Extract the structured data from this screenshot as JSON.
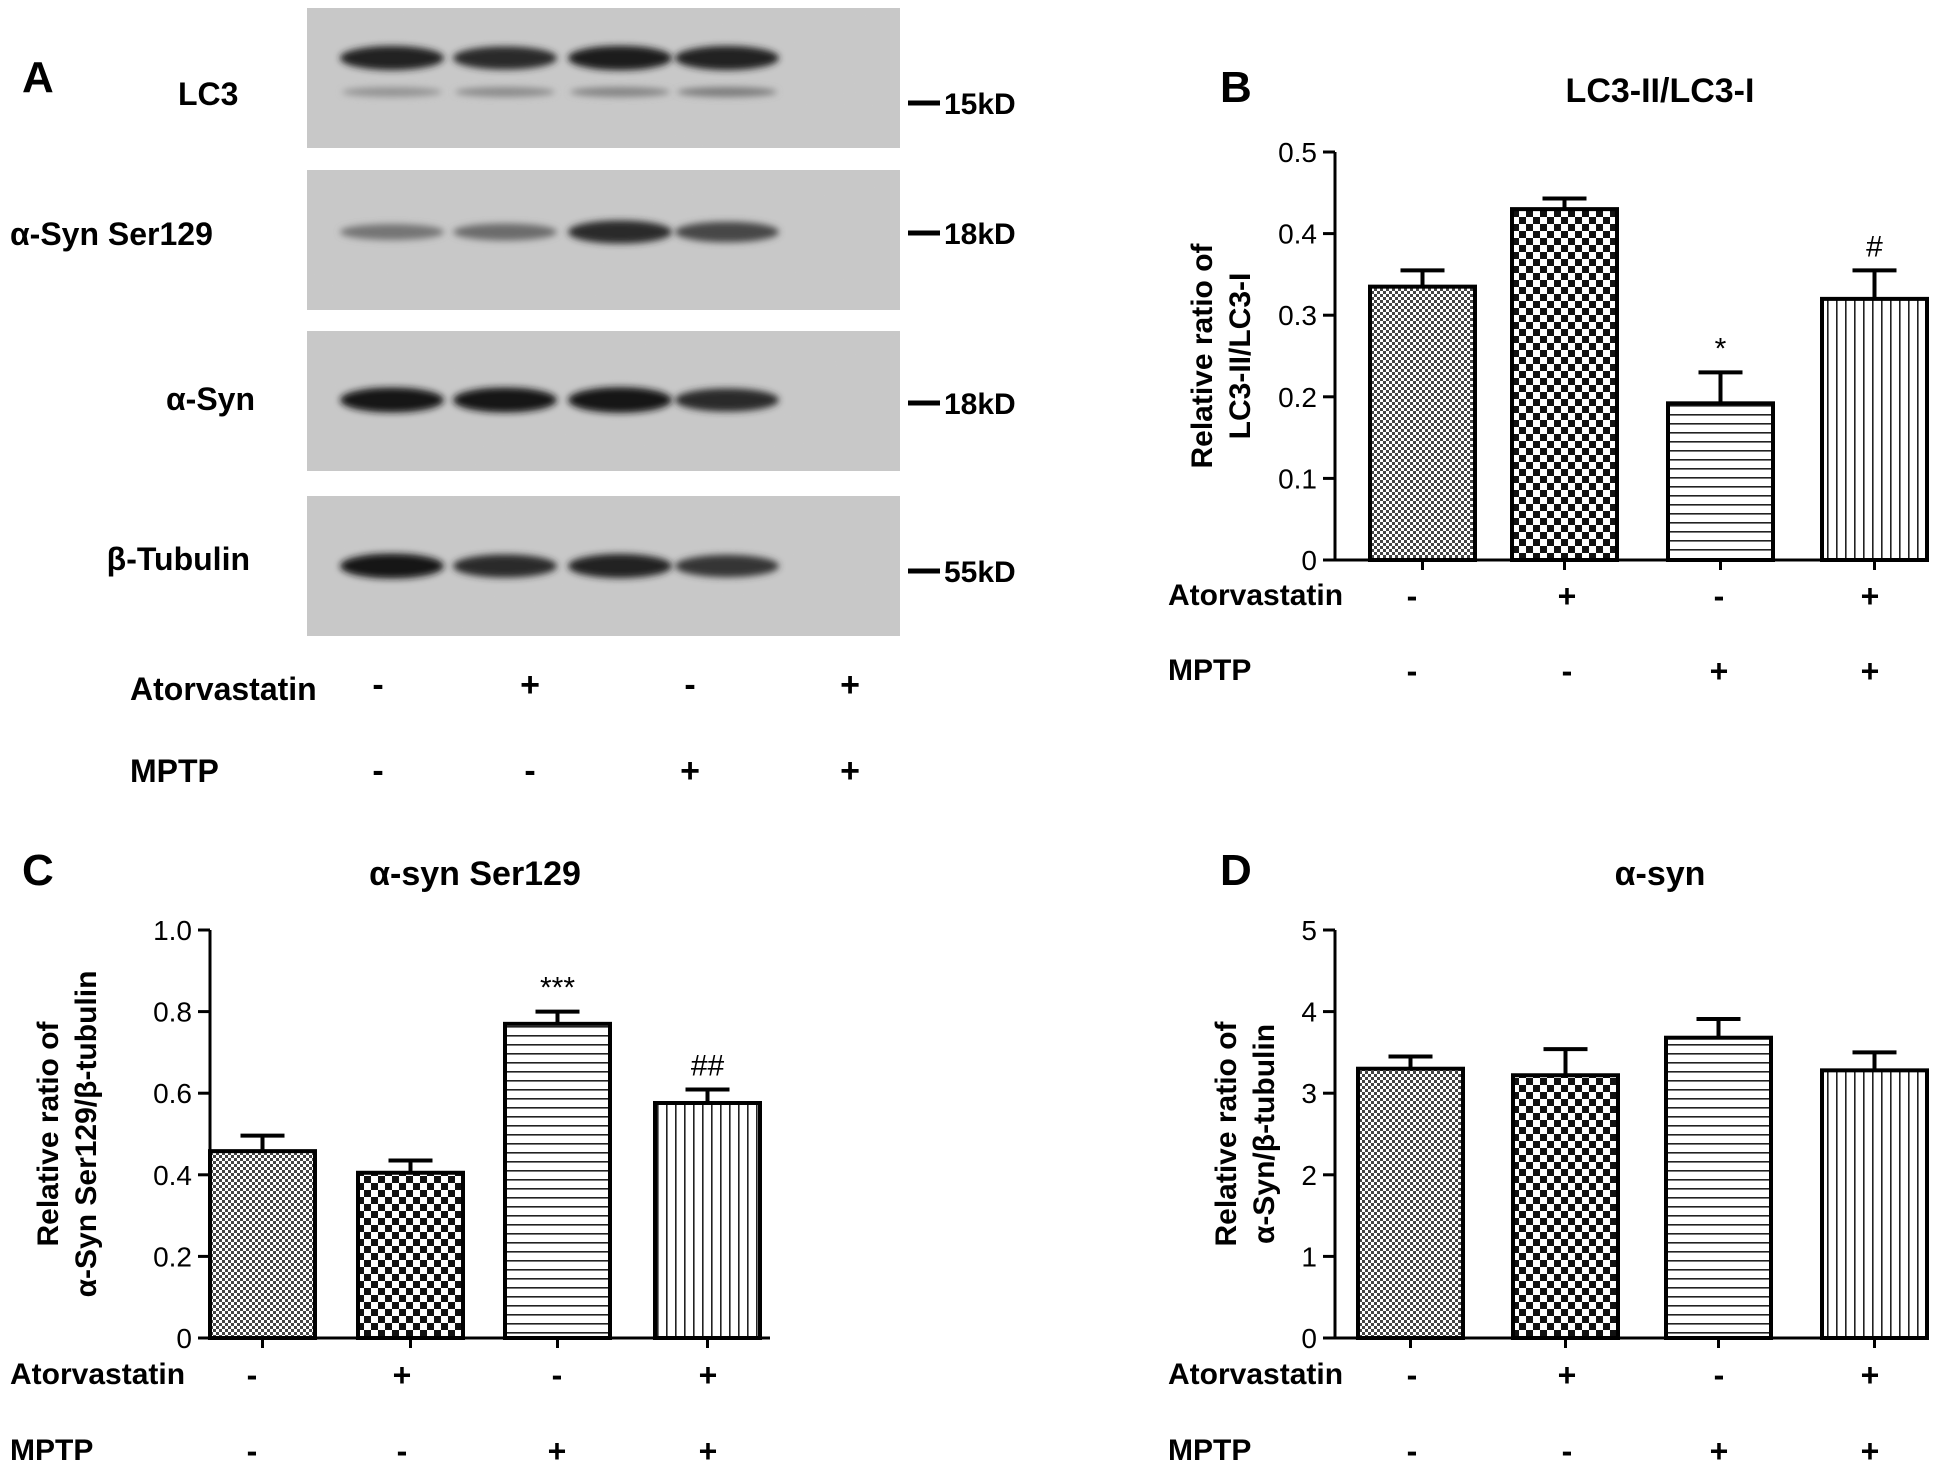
{
  "panel_a": {
    "letter": "A",
    "lanes": 4,
    "blots": [
      {
        "label": "LC3",
        "marker": "15kD",
        "bands": [
          0.9,
          0.85,
          0.92,
          0.9
        ],
        "lower_bands": [
          0.35,
          0.4,
          0.45,
          0.5
        ]
      },
      {
        "label": "α-Syn Ser129",
        "marker": "18kD",
        "bands": [
          0.45,
          0.5,
          0.85,
          0.7
        ],
        "lower_bands": null
      },
      {
        "label": "α-Syn",
        "marker": "18kD",
        "bands": [
          0.95,
          0.95,
          0.98,
          0.85
        ],
        "lower_bands": null
      },
      {
        "label": "β-Tubulin",
        "marker": "55kD",
        "bands": [
          0.95,
          0.85,
          0.9,
          0.8
        ],
        "lower_bands": null
      }
    ],
    "conditions": [
      {
        "name": "Atorvastatin",
        "values": [
          "-",
          "+",
          "-",
          "+"
        ]
      },
      {
        "name": "MPTP",
        "values": [
          "-",
          "-",
          "+",
          "+"
        ]
      }
    ]
  },
  "chart_data": [
    {
      "panel": "B",
      "type": "bar",
      "title": "LC3-II/LC3-I",
      "ylabel": [
        "Relative ratio of",
        "LC3-II/LC3-I"
      ],
      "ylim": [
        0,
        0.5
      ],
      "yticks": [
        "0",
        "0.1",
        "0.2",
        "0.3",
        "0.4",
        "0.5"
      ],
      "values": [
        0.335,
        0.43,
        0.192,
        0.32
      ],
      "errors": [
        0.02,
        0.013,
        0.038,
        0.035
      ],
      "annotations": [
        "",
        "",
        "*",
        "#"
      ],
      "patterns": [
        "dots",
        "checker",
        "hlines",
        "vlines"
      ],
      "conditions": [
        {
          "name": "Atorvastatin",
          "values": [
            "-",
            "+",
            "-",
            "+"
          ]
        },
        {
          "name": "MPTP",
          "values": [
            "-",
            "-",
            "+",
            "+"
          ]
        }
      ]
    },
    {
      "panel": "C",
      "type": "bar",
      "title": "α-syn Ser129",
      "ylabel": [
        "Relative ratio of",
        "α-Syn Ser129/β-tubulin"
      ],
      "ylim": [
        0,
        1.0
      ],
      "yticks": [
        "0",
        "0.2",
        "0.4",
        "0.6",
        "0.8",
        "1.0"
      ],
      "values": [
        0.458,
        0.405,
        0.77,
        0.576
      ],
      "errors": [
        0.038,
        0.03,
        0.03,
        0.033
      ],
      "annotations": [
        "",
        "",
        "***",
        "##"
      ],
      "patterns": [
        "dots",
        "checker",
        "hlines",
        "vlines"
      ],
      "conditions": [
        {
          "name": "Atorvastatin",
          "values": [
            "-",
            "+",
            "-",
            "+"
          ]
        },
        {
          "name": "MPTP",
          "values": [
            "-",
            "-",
            "+",
            "+"
          ]
        }
      ]
    },
    {
      "panel": "D",
      "type": "bar",
      "title": "α-syn",
      "ylabel": [
        "Relative ratio of",
        "α-Syn/β-tubulin"
      ],
      "ylim": [
        0,
        5
      ],
      "yticks": [
        "0",
        "1",
        "2",
        "3",
        "4",
        "5"
      ],
      "values": [
        3.3,
        3.22,
        3.68,
        3.28
      ],
      "errors": [
        0.15,
        0.32,
        0.23,
        0.22
      ],
      "annotations": [
        "",
        "",
        "",
        ""
      ],
      "patterns": [
        "dots",
        "checker",
        "hlines",
        "vlines"
      ],
      "conditions": [
        {
          "name": "Atorvastatin",
          "values": [
            "-",
            "+",
            "-",
            "+"
          ]
        },
        {
          "name": "MPTP",
          "values": [
            "-",
            "-",
            "+",
            "+"
          ]
        }
      ]
    }
  ]
}
